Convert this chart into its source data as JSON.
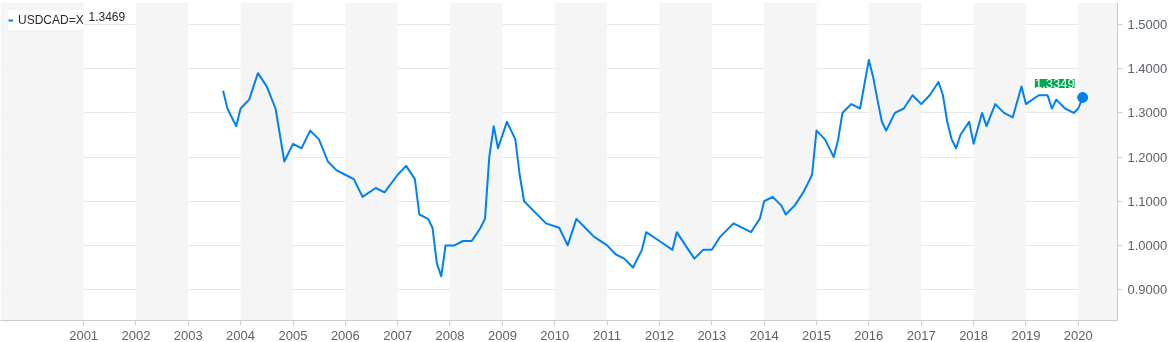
{
  "chart_data": {
    "type": "line",
    "x": [
      "2003-09",
      "2003-10",
      "2003-12",
      "2004-01",
      "2004-03",
      "2004-05",
      "2004-07",
      "2004-09",
      "2004-11",
      "2005-01",
      "2005-03",
      "2005-05",
      "2005-07",
      "2005-09",
      "2005-11",
      "2006-01",
      "2006-03",
      "2006-05",
      "2006-08",
      "2006-10",
      "2007-01",
      "2007-03",
      "2007-05",
      "2007-06",
      "2007-08",
      "2007-09",
      "2007-10",
      "2007-11",
      "2007-12",
      "2008-02",
      "2008-04",
      "2008-06",
      "2008-08",
      "2008-09",
      "2008-10",
      "2008-11",
      "2008-12",
      "2009-02",
      "2009-04",
      "2009-05",
      "2009-06",
      "2009-08",
      "2009-11",
      "2010-02",
      "2010-04",
      "2010-06",
      "2010-08",
      "2010-10",
      "2011-01",
      "2011-03",
      "2011-05",
      "2011-07",
      "2011-09",
      "2011-10",
      "2012-01",
      "2012-04",
      "2012-05",
      "2012-07",
      "2012-09",
      "2012-11",
      "2013-01",
      "2013-03",
      "2013-06",
      "2013-10",
      "2013-12",
      "2014-01",
      "2014-03",
      "2014-05",
      "2014-06",
      "2014-08",
      "2014-10",
      "2014-11",
      "2014-12",
      "2015-01",
      "2015-03",
      "2015-05",
      "2015-06",
      "2015-07",
      "2015-09",
      "2015-11",
      "2016-01",
      "2016-02",
      "2016-03",
      "2016-04",
      "2016-05",
      "2016-07",
      "2016-09",
      "2016-11",
      "2017-01",
      "2017-03",
      "2017-05",
      "2017-06",
      "2017-07",
      "2017-08",
      "2017-09",
      "2017-10",
      "2017-12",
      "2018-01",
      "2018-03",
      "2018-04",
      "2018-06",
      "2018-08",
      "2018-10",
      "2018-12",
      "2019-01",
      "2019-04",
      "2019-06",
      "2019-07",
      "2019-08",
      "2019-10",
      "2019-12",
      "2020-01",
      "2020-02"
    ],
    "series": [
      {
        "name": "USDCAD=X",
        "color": "#0081f2",
        "values": [
          1.35,
          1.31,
          1.27,
          1.31,
          1.33,
          1.39,
          1.36,
          1.31,
          1.19,
          1.23,
          1.22,
          1.26,
          1.24,
          1.19,
          1.17,
          1.16,
          1.15,
          1.11,
          1.13,
          1.12,
          1.16,
          1.18,
          1.15,
          1.07,
          1.06,
          1.04,
          0.96,
          0.93,
          1.0,
          1.0,
          1.01,
          1.01,
          1.04,
          1.06,
          1.2,
          1.27,
          1.22,
          1.28,
          1.24,
          1.16,
          1.1,
          1.08,
          1.05,
          1.04,
          1.0,
          1.06,
          1.04,
          1.02,
          1.0,
          0.98,
          0.97,
          0.95,
          0.99,
          1.03,
          1.01,
          0.99,
          1.03,
          1.0,
          0.97,
          0.99,
          0.99,
          1.02,
          1.05,
          1.03,
          1.06,
          1.1,
          1.11,
          1.09,
          1.07,
          1.09,
          1.12,
          1.14,
          1.16,
          1.26,
          1.24,
          1.2,
          1.24,
          1.3,
          1.32,
          1.31,
          1.42,
          1.38,
          1.33,
          1.28,
          1.26,
          1.3,
          1.31,
          1.34,
          1.32,
          1.34,
          1.37,
          1.34,
          1.28,
          1.24,
          1.22,
          1.25,
          1.28,
          1.23,
          1.3,
          1.27,
          1.32,
          1.3,
          1.29,
          1.36,
          1.32,
          1.34,
          1.34,
          1.31,
          1.33,
          1.31,
          1.3,
          1.31,
          1.3349
        ]
      }
    ],
    "annotations": [
      "1.3469",
      {
        "text": "1.3349",
        "x": "2020-02",
        "y": 1.3349
      }
    ],
    "xlim": [
      "1999-06",
      "2020-10"
    ],
    "xticks": [
      "2001",
      "2002",
      "2003",
      "2004",
      "2005",
      "2006",
      "2007",
      "2008",
      "2009",
      "2010",
      "2011",
      "2012",
      "2013",
      "2014",
      "2015",
      "2016",
      "2017",
      "2018",
      "2019",
      "2020"
    ],
    "ylim": [
      0.83,
      1.55
    ],
    "yticks": [
      {
        "value": 0.9,
        "label": "0.9000"
      },
      {
        "value": 1.0,
        "label": "1.0000"
      },
      {
        "value": 1.1,
        "label": "1.1000"
      },
      {
        "value": 1.2,
        "label": "1.2000"
      },
      {
        "value": 1.3,
        "label": "1.3000"
      },
      {
        "value": 1.4,
        "label": "1.4000"
      },
      {
        "value": 1.5,
        "label": "1.5000"
      }
    ],
    "bands": [
      {
        "axis": "x",
        "from": "1999-06",
        "to": "2001",
        "color": "#f5f5f5"
      },
      {
        "axis": "x",
        "from": "2002",
        "to": "2003",
        "color": "#f5f5f5"
      },
      {
        "axis": "x",
        "from": "2004",
        "to": "2005",
        "color": "#f5f5f5"
      },
      {
        "axis": "x",
        "from": "2006",
        "to": "2007",
        "color": "#f5f5f5"
      },
      {
        "axis": "x",
        "from": "2008",
        "to": "2009",
        "color": "#f5f5f5"
      },
      {
        "axis": "x",
        "from": "2010",
        "to": "2011",
        "color": "#f5f5f5"
      },
      {
        "axis": "x",
        "from": "2012",
        "to": "2013",
        "color": "#f5f5f5"
      },
      {
        "axis": "x",
        "from": "2014",
        "to": "2015",
        "color": "#f5f5f5"
      },
      {
        "axis": "x",
        "from": "2016",
        "to": "2017",
        "color": "#f5f5f5"
      },
      {
        "axis": "x",
        "from": "2018",
        "to": "2019",
        "color": "#f5f5f5"
      },
      {
        "axis": "x",
        "from": "2020",
        "to": "2020-10",
        "color": "#f5f5f5"
      }
    ],
    "grid": "y",
    "legend": "top left",
    "line_style": "solid",
    "marker": "none"
  }
}
